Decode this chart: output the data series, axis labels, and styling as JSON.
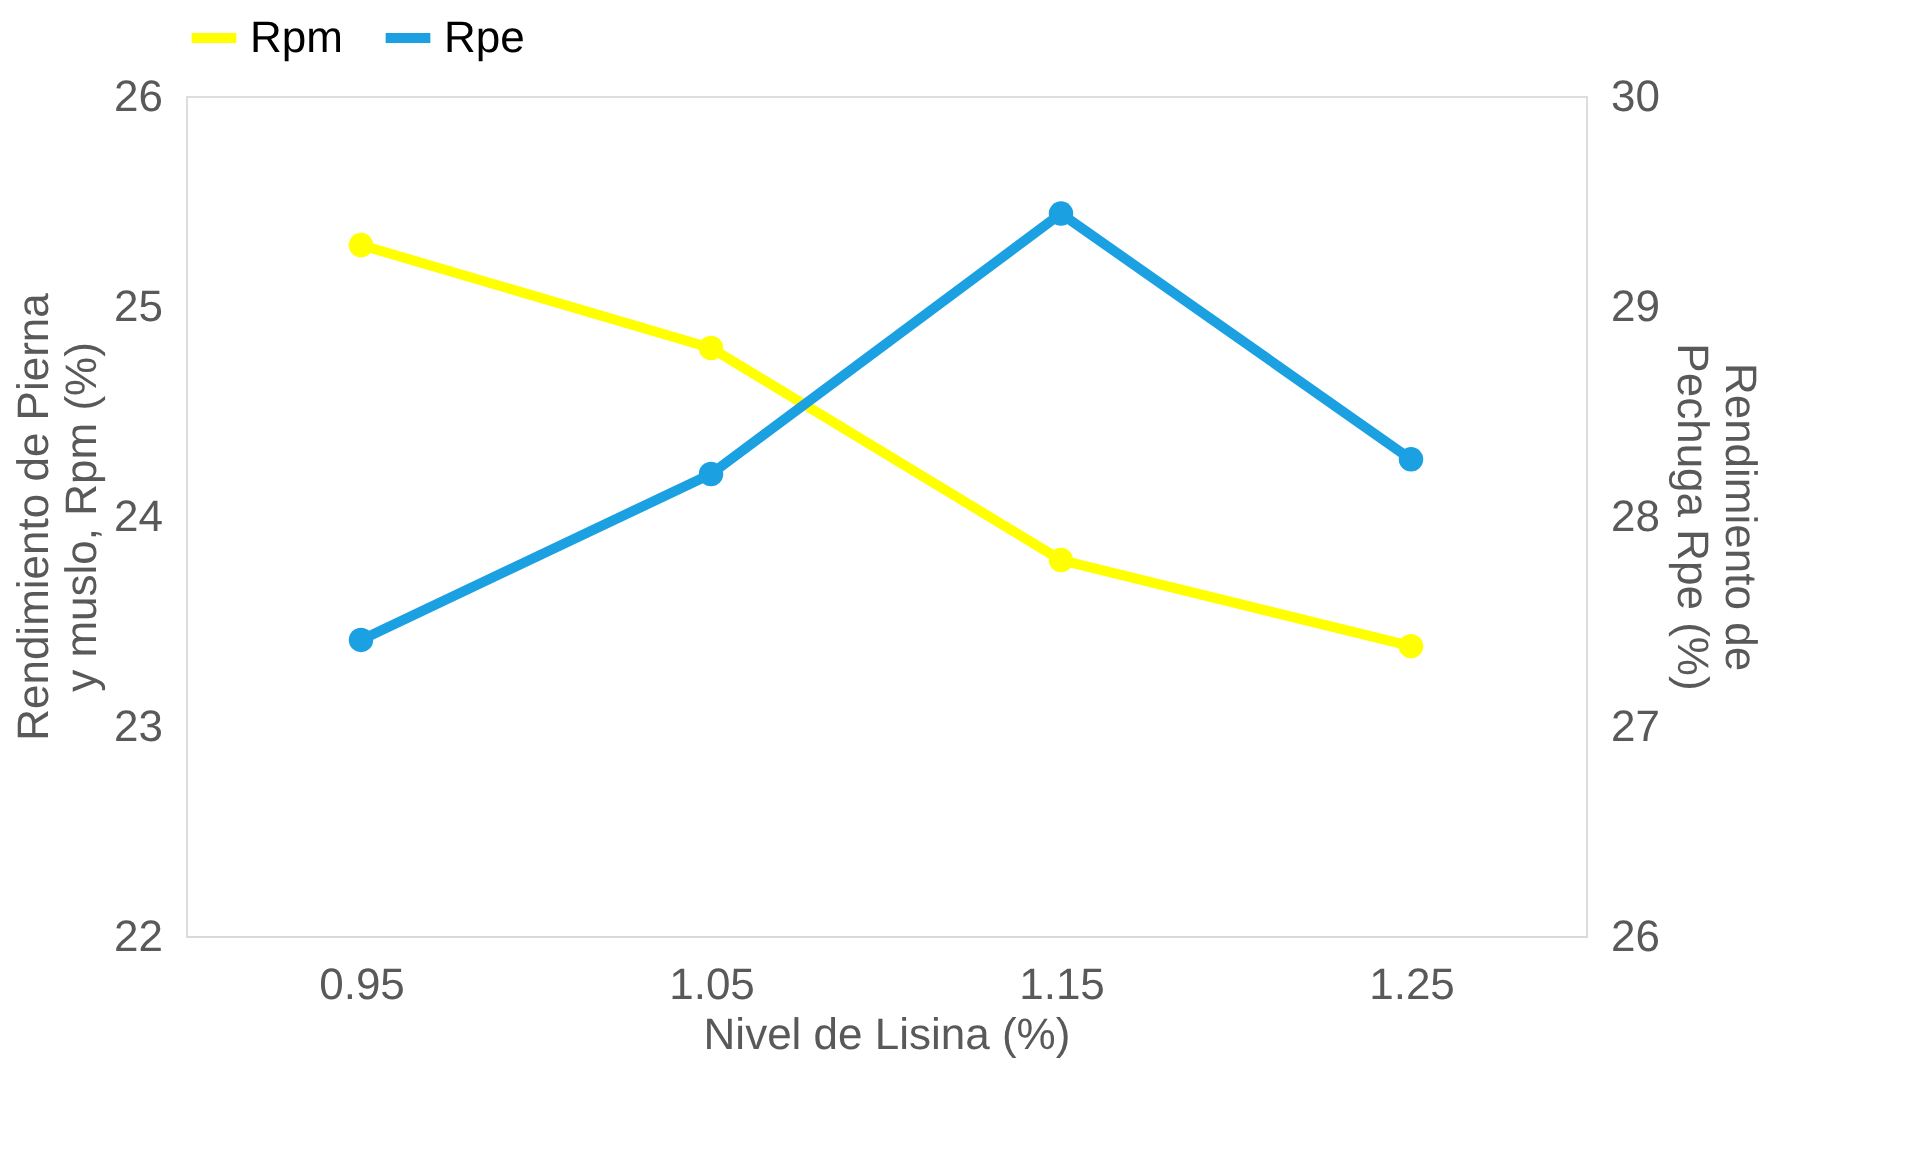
{
  "chart_data": {
    "type": "line",
    "xlabel": "Nivel de Lisina (%)",
    "ylabel": "Rendimiento  de Pierna y muslo, Rpm (%)",
    "y2label": "Rendimiento de Pechuga Rpe (%)",
    "categories": [
      "0.95",
      "1.05",
      "1.15",
      "1.25"
    ],
    "series": [
      {
        "name": "Rpm",
        "color": "#ffff00",
        "values": [
          25.29,
          24.8,
          23.79,
          23.38
        ]
      },
      {
        "name": "Rpe",
        "color": "#1ba1e2",
        "axis": "y2",
        "values": [
          27.41,
          28.2,
          29.44,
          28.27
        ]
      }
    ],
    "ylim": [
      22,
      26
    ],
    "yticks": [
      22,
      23,
      24,
      25,
      26
    ],
    "y2lim": [
      26,
      30
    ],
    "y2ticks": [
      26,
      27,
      28,
      29,
      30
    ],
    "marker": "circle",
    "line_style": "solid",
    "legend": "top",
    "grid": false
  }
}
